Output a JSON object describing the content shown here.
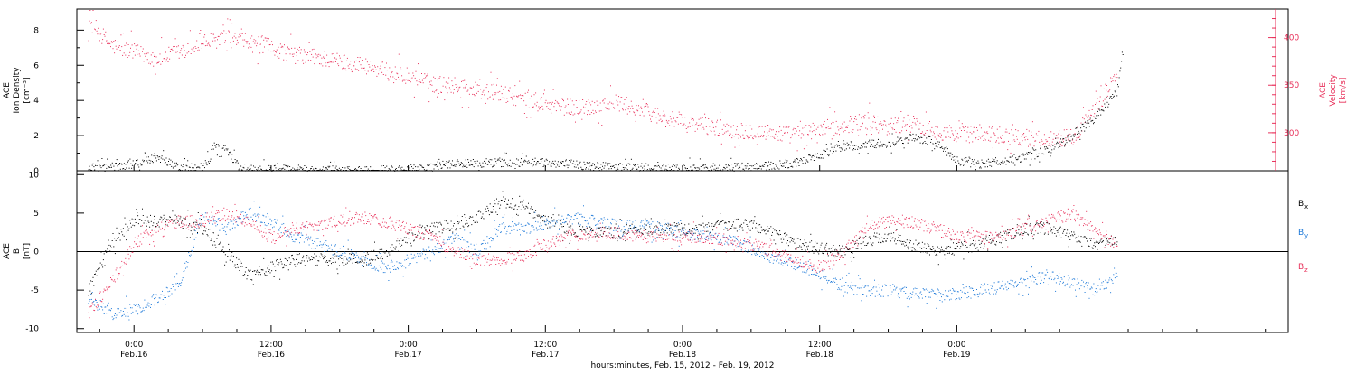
{
  "chart_data": [
    {
      "type": "scatter",
      "panel": "top",
      "ylabel_left": [
        "ACE",
        "Ion Density",
        "[cm⁻³]"
      ],
      "ylabel_right": [
        "ACE",
        "Velocity",
        "[km/s]"
      ],
      "ylim_left": [
        0,
        9.2
      ],
      "ylim_right": [
        260,
        430
      ],
      "yticks_left": [
        0,
        2,
        4,
        6,
        8
      ],
      "yticks_right": [
        300,
        350,
        400
      ],
      "colors": {
        "density": "#000000",
        "velocity": "#e8305a"
      },
      "series": [
        {
          "key": "density",
          "axis": "left",
          "hours": [
            -4,
            0,
            2,
            4,
            6,
            6.5,
            7,
            8,
            9,
            10,
            12,
            14,
            16,
            18,
            20,
            24,
            28,
            32,
            36,
            40,
            44,
            48,
            52,
            56,
            58,
            60,
            62,
            64,
            66,
            68,
            70,
            72,
            74,
            76,
            78,
            80,
            82,
            84,
            86,
            86.5
          ],
          "values": [
            0.1,
            0.4,
            0.8,
            0.2,
            0.2,
            0.6,
            1.5,
            1.2,
            0.4,
            0.1,
            0.1,
            0.1,
            0.05,
            0.05,
            0.05,
            0.1,
            0.4,
            0.5,
            0.5,
            0.3,
            0.2,
            0.15,
            0.2,
            0.3,
            0.5,
            0.9,
            1.4,
            1.5,
            1.6,
            1.9,
            1.7,
            0.6,
            0.4,
            0.6,
            0.8,
            1.2,
            2.0,
            3.0,
            4.5,
            7.0
          ]
        },
        {
          "key": "velocity",
          "axis": "right",
          "hours": [
            -4,
            -2,
            0,
            2,
            4,
            6,
            8,
            10,
            12,
            14,
            16,
            18,
            20,
            22,
            24,
            26,
            28,
            30,
            32,
            34,
            36,
            38,
            40,
            42,
            44,
            46,
            48,
            50,
            52,
            54,
            56,
            58,
            60,
            62,
            64,
            66,
            68,
            70,
            72,
            74,
            76,
            78,
            80,
            82,
            84,
            86
          ],
          "values": [
            418,
            392,
            385,
            378,
            385,
            395,
            400,
            395,
            390,
            382,
            380,
            375,
            372,
            365,
            360,
            352,
            350,
            345,
            342,
            335,
            330,
            327,
            328,
            332,
            326,
            318,
            310,
            308,
            304,
            302,
            300,
            298,
            304,
            308,
            312,
            307,
            310,
            303,
            298,
            300,
            298,
            295,
            294,
            296,
            322,
            365
          ]
        }
      ]
    },
    {
      "type": "scatter",
      "panel": "bottom",
      "ylabel": [
        "ACE",
        "B",
        "[nT]"
      ],
      "ylim": [
        -10.5,
        10.5
      ],
      "yticks": [
        -10,
        -5,
        0,
        5,
        10
      ],
      "x_range_hours": [
        -5,
        101
      ],
      "xticks": [
        {
          "hour": 0,
          "time": "0:00",
          "date": "Feb.16"
        },
        {
          "hour": 12,
          "time": "12:00",
          "date": "Feb.16"
        },
        {
          "hour": 24,
          "time": "0:00",
          "date": "Feb.17"
        },
        {
          "hour": 36,
          "time": "12:00",
          "date": "Feb.17"
        },
        {
          "hour": 48,
          "time": "0:00",
          "date": "Feb.18"
        },
        {
          "hour": 60,
          "time": "12:00",
          "date": "Feb.18"
        },
        {
          "hour": 72,
          "time": "0:00",
          "date": "Feb.19"
        }
      ],
      "xlabel": "hours:minutes, Feb. 15, 2012 - Feb. 19, 2012",
      "series": [
        {
          "name": "B",
          "sub": "x",
          "color": "#000000",
          "hours": [
            -4,
            -2,
            0,
            2,
            4,
            6,
            8,
            10,
            12,
            14,
            16,
            18,
            20,
            22,
            24,
            26,
            28,
            30,
            32,
            34,
            36,
            38,
            40,
            42,
            44,
            46,
            48,
            50,
            52,
            54,
            56,
            58,
            60,
            62,
            64,
            66,
            68,
            70,
            72,
            74,
            76,
            78,
            80,
            82,
            84,
            86
          ],
          "values": [
            -5,
            1,
            4,
            4,
            4,
            3,
            0,
            -3,
            -2,
            -1,
            -1,
            -1,
            -1,
            0,
            2,
            3,
            3.5,
            4.5,
            6.5,
            6,
            4,
            3,
            2.5,
            2.5,
            3,
            3,
            3,
            3,
            3.5,
            3.5,
            2.5,
            1,
            0.5,
            0,
            1.5,
            2,
            1,
            0,
            0.5,
            1,
            2,
            3,
            3,
            2,
            1,
            1.5
          ]
        },
        {
          "name": "B",
          "sub": "y",
          "color": "#1a77d8",
          "hours": [
            -4,
            -2,
            0,
            2,
            4,
            6,
            8,
            10,
            12,
            14,
            16,
            18,
            20,
            22,
            24,
            26,
            28,
            30,
            32,
            34,
            36,
            38,
            40,
            42,
            44,
            46,
            48,
            50,
            52,
            54,
            56,
            58,
            60,
            62,
            64,
            66,
            68,
            70,
            72,
            74,
            76,
            78,
            80,
            82,
            84,
            86
          ],
          "values": [
            -6,
            -8,
            -7.5,
            -6,
            -4,
            5,
            3,
            5,
            4,
            2,
            1,
            0,
            -1,
            -2,
            -1,
            0,
            2,
            0,
            3,
            3,
            3.5,
            4.5,
            4,
            3.5,
            3.5,
            3,
            2.5,
            2,
            1.5,
            0.5,
            -1,
            -1.5,
            -3,
            -4.5,
            -5,
            -5,
            -5.5,
            -5.5,
            -5.5,
            -5,
            -4.5,
            -4,
            -3,
            -4,
            -5,
            -3
          ]
        },
        {
          "name": "B",
          "sub": "z",
          "color": "#e8305a",
          "hours": [
            -4,
            -2,
            0,
            2,
            4,
            6,
            8,
            10,
            12,
            14,
            16,
            18,
            20,
            22,
            24,
            26,
            28,
            30,
            32,
            34,
            36,
            38,
            40,
            42,
            44,
            46,
            48,
            50,
            52,
            54,
            56,
            58,
            60,
            62,
            64,
            66,
            68,
            70,
            72,
            74,
            76,
            78,
            80,
            82,
            84,
            86
          ],
          "values": [
            -8,
            -4,
            1,
            3,
            4,
            4,
            5,
            4,
            2,
            3,
            3.5,
            4,
            4.5,
            4,
            3,
            2,
            0,
            -1,
            -1,
            -0.5,
            1,
            2,
            2.5,
            2.5,
            2,
            2,
            2,
            2,
            1.5,
            1,
            0,
            -1,
            -2,
            0,
            3,
            4,
            4,
            3,
            2,
            2,
            2,
            3,
            4,
            5,
            3,
            1
          ]
        }
      ]
    }
  ]
}
